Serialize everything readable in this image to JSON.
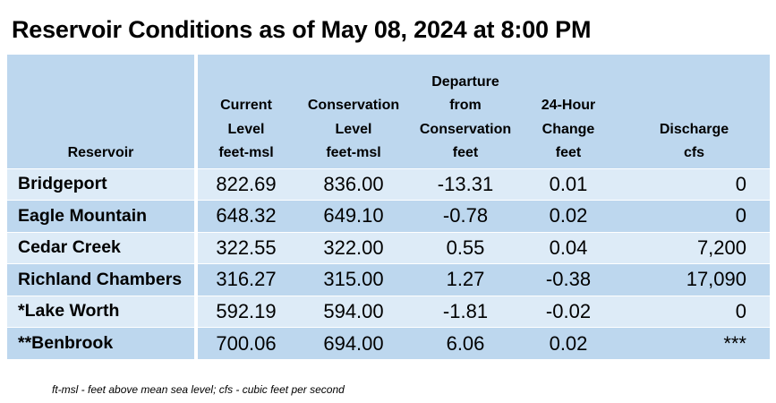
{
  "title": "Reservoir Conditions as of May 08, 2024 at 8:00 PM",
  "headers": [
    {
      "lines": [
        "",
        "",
        "",
        "Reservoir"
      ]
    },
    {
      "lines": [
        "",
        "Current",
        "Level"
      ],
      "unit": "feet-msl"
    },
    {
      "lines": [
        "",
        "Conservation",
        "Level"
      ],
      "unit": "feet-msl"
    },
    {
      "lines": [
        "Departure",
        "from",
        "Conservation"
      ],
      "unit": "feet"
    },
    {
      "lines": [
        "",
        "24-Hour",
        "Change"
      ],
      "unit": "feet"
    },
    {
      "lines": [
        "",
        "",
        "Discharge"
      ],
      "unit": "cfs"
    }
  ],
  "rows": [
    {
      "name": "Bridgeport",
      "current": "822.69",
      "conservation": "836.00",
      "departure": "-13.31",
      "change": "0.01",
      "discharge": "0"
    },
    {
      "name": "Eagle Mountain",
      "current": "648.32",
      "conservation": "649.10",
      "departure": "-0.78",
      "change": "0.02",
      "discharge": "0"
    },
    {
      "name": "Cedar Creek",
      "current": "322.55",
      "conservation": "322.00",
      "departure": "0.55",
      "change": "0.04",
      "discharge": "7,200"
    },
    {
      "name": "Richland Chambers",
      "current": "316.27",
      "conservation": "315.00",
      "departure": "1.27",
      "change": "-0.38",
      "discharge": "17,090"
    },
    {
      "name": "*Lake Worth",
      "current": "592.19",
      "conservation": "594.00",
      "departure": "-1.81",
      "change": "-0.02",
      "discharge": "0"
    },
    {
      "name": "**Benbrook",
      "current": "700.06",
      "conservation": "694.00",
      "departure": "6.06",
      "change": "0.02",
      "discharge": "***"
    }
  ],
  "footnote": "ft-msl - feet above mean sea level; cfs - cubic feet per second",
  "colors": {
    "header_bg": "#bdd7ee",
    "row_light": "#ddebf7",
    "row_dark": "#bdd7ee"
  }
}
